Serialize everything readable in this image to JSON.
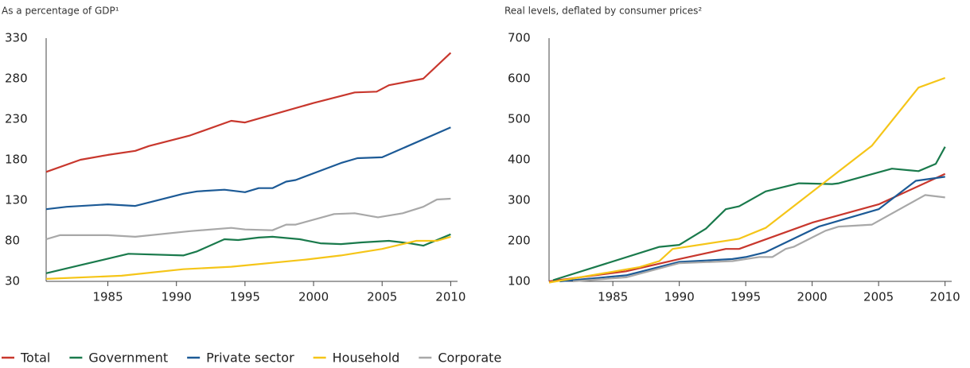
{
  "chart_data": [
    {
      "type": "line",
      "title": "As a percentage of GDP¹",
      "xlim": [
        1980.5,
        2010.5
      ],
      "xticks": [
        1985,
        1990,
        1995,
        2000,
        2005,
        2010
      ],
      "ylim": [
        30,
        330
      ],
      "yticks": [
        30,
        80,
        130,
        180,
        230,
        280,
        330
      ],
      "series": [
        {
          "name": "Total",
          "color": "#c8372d",
          "x": [
            1980.5,
            1983,
            1985,
            1987,
            1988,
            1991,
            1994,
            1995,
            2000,
            2003,
            2004.6,
            2005.5,
            2008,
            2010
          ],
          "values": [
            165,
            180,
            186,
            191,
            197,
            210,
            228,
            226,
            250,
            263,
            264,
            272,
            280,
            312
          ]
        },
        {
          "name": "Government",
          "color": "#1a7a4c",
          "x": [
            1980.5,
            1983,
            1986.5,
            1990.5,
            1991.5,
            1993.5,
            1994.5,
            1996,
            1997,
            1999,
            2000.5,
            2002,
            2003.5,
            2005.5,
            2007,
            2008,
            2010
          ],
          "values": [
            40,
            50,
            64,
            62,
            67,
            82,
            81,
            84,
            85,
            82,
            77,
            76,
            78,
            80,
            77,
            74,
            88
          ]
        },
        {
          "name": "Private sector",
          "color": "#1c5a96",
          "x": [
            1980.5,
            1982,
            1985,
            1987,
            1990.5,
            1991.5,
            1993.5,
            1995,
            1996,
            1997,
            1998,
            1998.7,
            2002,
            2003.2,
            2005,
            2010
          ],
          "values": [
            119,
            122,
            125,
            123,
            138,
            141,
            143,
            140,
            145,
            145,
            153,
            155,
            176,
            182,
            183,
            220
          ]
        },
        {
          "name": "Household",
          "color": "#f5c518",
          "x": [
            1980.5,
            1986,
            1990.5,
            1994,
            1999.5,
            2002,
            2005,
            2007.5,
            2009,
            2010
          ],
          "values": [
            33,
            37,
            45,
            48,
            57,
            62,
            70,
            80,
            80,
            85
          ]
        },
        {
          "name": "Corporate",
          "color": "#a8a8a8",
          "x": [
            1980.5,
            1981.5,
            1985,
            1987,
            1991,
            1994,
            1995,
            1997,
            1998,
            1998.7,
            2001.5,
            2003,
            2004.7,
            2006.5,
            2008,
            2009,
            2010
          ],
          "values": [
            82,
            87,
            87,
            85,
            92,
            96,
            94,
            93,
            100,
            100,
            113,
            114,
            109,
            114,
            122,
            131,
            132
          ]
        }
      ]
    },
    {
      "type": "line",
      "title": "Real levels, deflated by consumer prices²",
      "xlim": [
        1980.2,
        2010.5
      ],
      "xticks": [
        1985,
        1990,
        1995,
        2000,
        2005,
        2010
      ],
      "ylim": [
        100,
        700
      ],
      "yticks": [
        100,
        200,
        300,
        400,
        500,
        600,
        700
      ],
      "series": [
        {
          "color": "#c8372d",
          "x": [
            1980.2,
            1986,
            1990,
            1993.5,
            1994.5,
            2000,
            2005,
            2010
          ],
          "values": [
            100,
            125,
            155,
            180,
            180,
            245,
            290,
            365
          ]
        },
        {
          "color": "#1a7a4c",
          "x": [
            1980.5,
            1988.5,
            1990,
            1992,
            1993.5,
            1994.5,
            1996.5,
            1999,
            2001.5,
            2002,
            2006,
            2008,
            2009.3,
            2010
          ],
          "values": [
            103,
            185,
            190,
            230,
            278,
            285,
            322,
            342,
            340,
            342,
            378,
            372,
            390,
            432
          ]
        },
        {
          "color": "#1c5a96",
          "x": [
            1981,
            1986,
            1990,
            1994,
            1995,
            1996.5,
            2000.5,
            2005,
            2007.8,
            2010
          ],
          "values": [
            100,
            115,
            148,
            155,
            160,
            172,
            235,
            278,
            348,
            358
          ]
        },
        {
          "color": "#f5c518",
          "x": [
            1980.2,
            1987,
            1988.5,
            1989.5,
            1994.5,
            1996.5,
            2004.5,
            2008,
            2010
          ],
          "values": [
            97,
            135,
            150,
            180,
            205,
            232,
            435,
            578,
            602
          ]
        },
        {
          "color": "#a8a8a8",
          "x": [
            1982,
            1986,
            1990,
            1994,
            1996,
            1997,
            1998,
            1998.6,
            2001,
            2002,
            2004.5,
            2008.5,
            2010
          ],
          "values": [
            100,
            110,
            145,
            150,
            160,
            160,
            180,
            185,
            225,
            235,
            240,
            313,
            307
          ]
        }
      ]
    }
  ]
}
